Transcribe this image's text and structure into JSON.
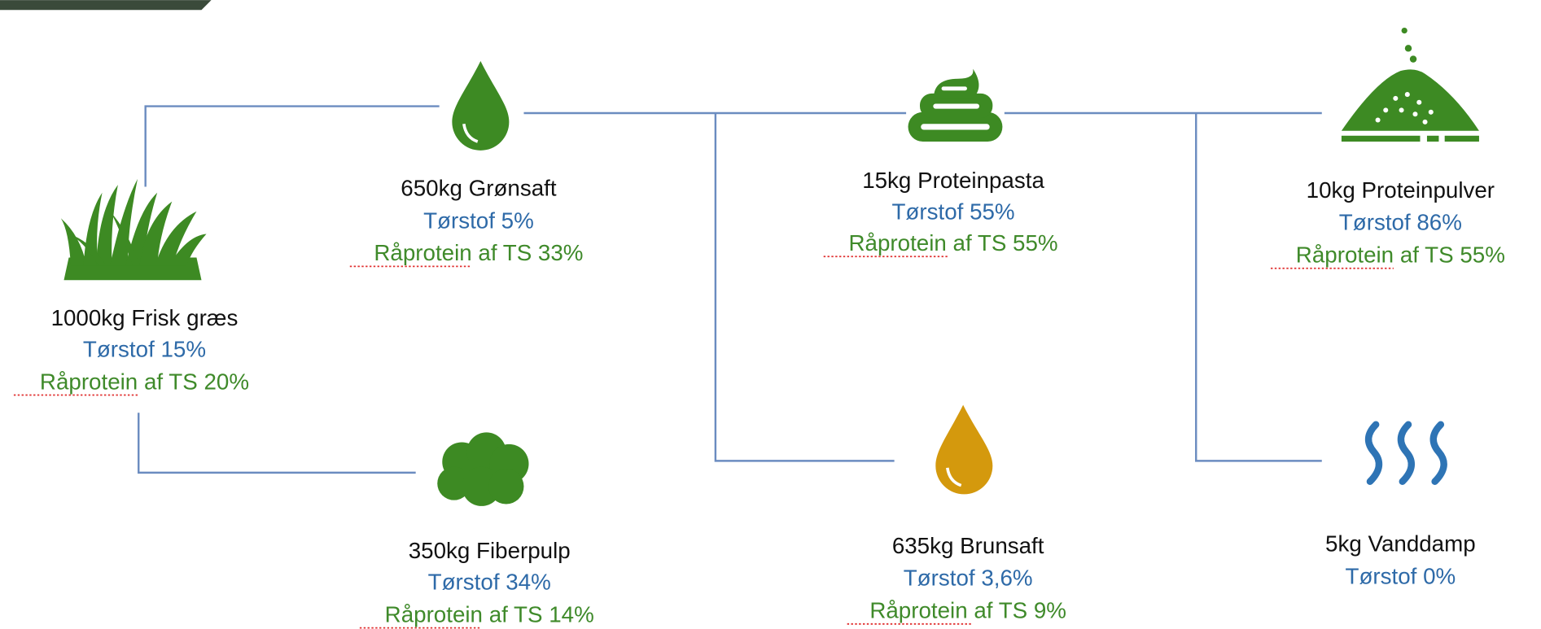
{
  "nodes": [
    {
      "title": "1000kg Frisk græs",
      "dry_matter": "Tørstof 15%",
      "crude_protein": "Råprotein af TS 20%"
    },
    {
      "title": "650kg Grønsaft",
      "dry_matter": "Tørstof 5%",
      "crude_protein": "Råprotein af TS 33%"
    },
    {
      "title": "15kg Proteinpasta",
      "dry_matter": "Tørstof 55%",
      "crude_protein": "Råprotein af TS 55%"
    },
    {
      "title": "10kg Proteinpulver",
      "dry_matter": "Tørstof 86%",
      "crude_protein": "Råprotein af TS 55%"
    },
    {
      "title": "350kg Fiberpulp",
      "dry_matter": "Tørstof 34%",
      "crude_protein": "Råprotein af TS 14%"
    },
    {
      "title": "635kg Brunsaft",
      "dry_matter": "Tørstof 3,6%",
      "crude_protein": "Råprotein af TS 9%"
    },
    {
      "title": "5kg Vanddamp",
      "dry_matter": "Tørstof 0%"
    }
  ]
}
